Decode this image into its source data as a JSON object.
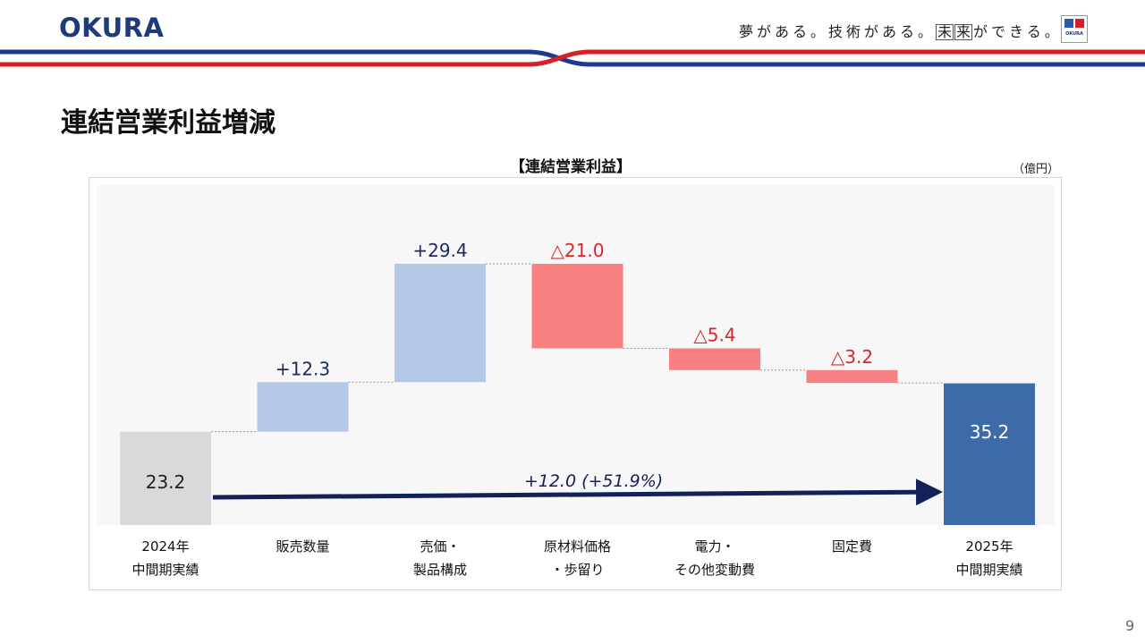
{
  "header": {
    "logo_text": "OKURA",
    "slogan_part1": "夢がある。技術がある。",
    "slogan_box1": "未",
    "slogan_box2": "来",
    "slogan_part2": "ができる。",
    "corner_logo_text": "OKURA",
    "stripe_colors": {
      "blue": "#1f3a8a",
      "red": "#d71f27"
    }
  },
  "page": {
    "title": "連結営業利益増減",
    "page_number": "9"
  },
  "chart_data": {
    "type": "waterfall",
    "title": "【連結営業利益】",
    "unit": "（億円）",
    "ylim": [
      0,
      50
    ],
    "categories": [
      {
        "line1": "2024年",
        "line2": "中間期実績"
      },
      {
        "line1": "販売数量",
        "line2": ""
      },
      {
        "line1": "売価・",
        "line2": "製品構成"
      },
      {
        "line1": "原材料価格",
        "line2": "・歩留り"
      },
      {
        "line1": "電力・",
        "line2": "その他変動費"
      },
      {
        "line1": "固定費",
        "line2": ""
      },
      {
        "line1": "2025年",
        "line2": "中間期実績"
      }
    ],
    "bars": [
      {
        "kind": "total",
        "value": 23.2,
        "label": "23.2",
        "color": "#d9d9d9",
        "label_color": "#222222"
      },
      {
        "kind": "increase",
        "value": 12.3,
        "label": "+12.3",
        "color": "#b4c7e7",
        "label_color": "#1f2a5a"
      },
      {
        "kind": "increase",
        "value": 29.4,
        "label": "+29.4",
        "color": "#b4c7e7",
        "label_color": "#1f2a5a"
      },
      {
        "kind": "decrease",
        "value": -21.0,
        "label": "△21.0",
        "color": "#f88080",
        "label_color": "#d9262c"
      },
      {
        "kind": "decrease",
        "value": -5.4,
        "label": "△5.4",
        "color": "#f88080",
        "label_color": "#d9262c"
      },
      {
        "kind": "decrease",
        "value": -3.2,
        "label": "△3.2",
        "color": "#f88080",
        "label_color": "#d9262c"
      },
      {
        "kind": "total",
        "value": 35.2,
        "label": "35.2",
        "color": "#3d6ba8",
        "label_color": "#ffffff"
      }
    ],
    "change_annotation": {
      "text": "+12.0 (+51.9%)",
      "color": "#13205a"
    }
  }
}
